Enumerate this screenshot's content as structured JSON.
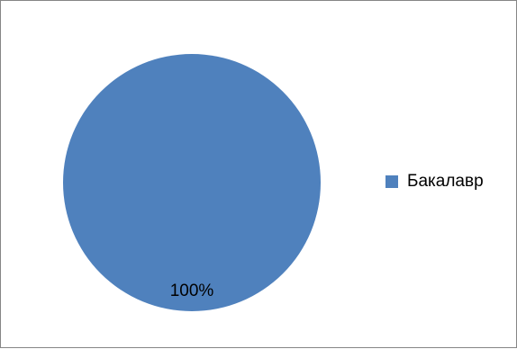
{
  "chart_data": {
    "type": "pie",
    "slices": [
      {
        "label": "Бакалавр",
        "value": 100,
        "data_label": "100%",
        "color": "#4F81BD"
      }
    ],
    "legend_position": "right"
  }
}
